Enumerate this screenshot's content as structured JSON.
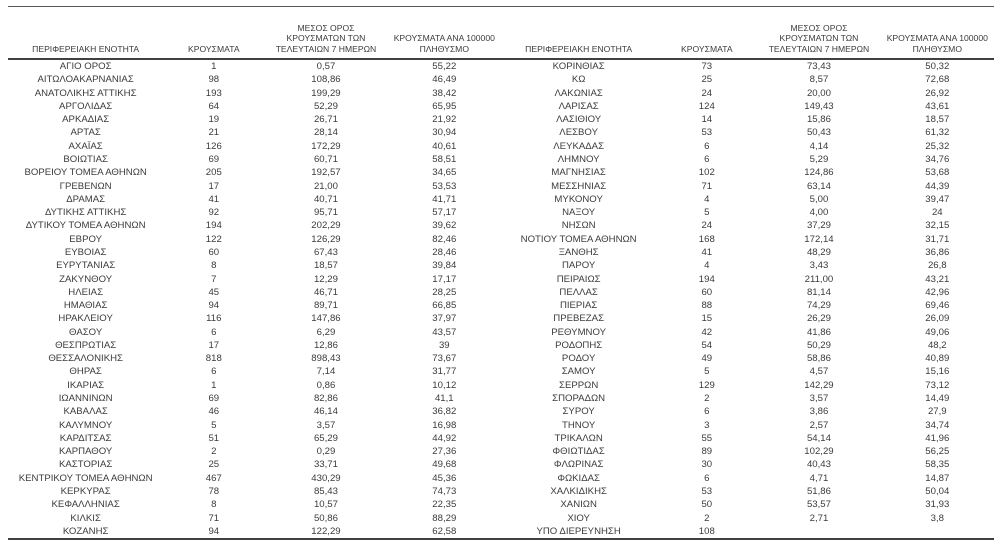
{
  "title": "Κρούσματα ανά περιφερειακή ενότητα",
  "colors": {
    "text": "#3b3b3b",
    "border": "#404040",
    "background": "#ffffff"
  },
  "table": {
    "headers": {
      "region": "ΠΕΡΙΦΕΡΕΙΑΚΗ ΕΝΟΤΗΤΑ",
      "cases": "ΚΡΟΥΣΜΑΤΑ",
      "avg7": "ΜΕΣΟΣ ΟΡΟΣ\nΚΡΟΥΣΜΑΤΩΝ ΤΩΝ\nΤΕΛΕΥΤΑΙΩΝ 7 ΗΜΕΡΩΝ",
      "per100k": "ΚΡΟΥΣΜΑΤΑ ΑΝΑ 100000\nΠΛΗΘΥΣΜΟ"
    },
    "halves": [
      {
        "rows": [
          [
            "ΑΓΙΟ ΟΡΟΣ",
            "1",
            "0,57",
            "55,22"
          ],
          [
            "ΑΙΤΩΛΟΑΚΑΡΝΑΝΙΑΣ",
            "98",
            "108,86",
            "46,49"
          ],
          [
            "ΑΝΑΤΟΛΙΚΗΣ ΑΤΤΙΚΗΣ",
            "193",
            "199,29",
            "38,42"
          ],
          [
            "ΑΡΓΟΛΙΔΑΣ",
            "64",
            "52,29",
            "65,95"
          ],
          [
            "ΑΡΚΑΔΙΑΣ",
            "19",
            "26,71",
            "21,92"
          ],
          [
            "ΑΡΤΑΣ",
            "21",
            "28,14",
            "30,94"
          ],
          [
            "ΑΧΑΪΑΣ",
            "126",
            "172,29",
            "40,61"
          ],
          [
            "ΒΟΙΩΤΙΑΣ",
            "69",
            "60,71",
            "58,51"
          ],
          [
            "ΒΟΡΕΙΟΥ ΤΟΜΕΑ ΑΘΗΝΩΝ",
            "205",
            "192,57",
            "34,65"
          ],
          [
            "ΓΡΕΒΕΝΩΝ",
            "17",
            "21,00",
            "53,53"
          ],
          [
            "ΔΡΑΜΑΣ",
            "41",
            "40,71",
            "41,71"
          ],
          [
            "ΔΥΤΙΚΗΣ ΑΤΤΙΚΗΣ",
            "92",
            "95,71",
            "57,17"
          ],
          [
            "ΔΥΤΙΚΟΥ ΤΟΜΕΑ ΑΘΗΝΩΝ",
            "194",
            "202,29",
            "39,62"
          ],
          [
            "ΕΒΡΟΥ",
            "122",
            "126,29",
            "82,46"
          ],
          [
            "ΕΥΒΟΙΑΣ",
            "60",
            "67,43",
            "28,46"
          ],
          [
            "ΕΥΡΥΤΑΝΙΑΣ",
            "8",
            "18,57",
            "39,84"
          ],
          [
            "ΖΑΚΥΝΘΟΥ",
            "7",
            "12,29",
            "17,17"
          ],
          [
            "ΗΛΕΙΑΣ",
            "45",
            "46,71",
            "28,25"
          ],
          [
            "ΗΜΑΘΙΑΣ",
            "94",
            "89,71",
            "66,85"
          ],
          [
            "ΗΡΑΚΛΕΙΟΥ",
            "116",
            "147,86",
            "37,97"
          ],
          [
            "ΘΑΣΟΥ",
            "6",
            "6,29",
            "43,57"
          ],
          [
            "ΘΕΣΠΡΩΤΙΑΣ",
            "17",
            "12,86",
            "39"
          ],
          [
            "ΘΕΣΣΑΛΟΝΙΚΗΣ",
            "818",
            "898,43",
            "73,67"
          ],
          [
            "ΘΗΡΑΣ",
            "6",
            "7,14",
            "31,77"
          ],
          [
            "ΙΚΑΡΙΑΣ",
            "1",
            "0,86",
            "10,12"
          ],
          [
            "ΙΩΑΝΝΙΝΩΝ",
            "69",
            "82,86",
            "41,1"
          ],
          [
            "ΚΑΒΑΛΑΣ",
            "46",
            "46,14",
            "36,82"
          ],
          [
            "ΚΑΛΥΜΝΟΥ",
            "5",
            "3,57",
            "16,98"
          ],
          [
            "ΚΑΡΔΙΤΣΑΣ",
            "51",
            "65,29",
            "44,92"
          ],
          [
            "ΚΑΡΠΑΘΟΥ",
            "2",
            "0,29",
            "27,36"
          ],
          [
            "ΚΑΣΤΟΡΙΑΣ",
            "25",
            "33,71",
            "49,68"
          ],
          [
            "ΚΕΝΤΡΙΚΟΥ ΤΟΜΕΑ ΑΘΗΝΩΝ",
            "467",
            "430,29",
            "45,36"
          ],
          [
            "ΚΕΡΚΥΡΑΣ",
            "78",
            "85,43",
            "74,73"
          ],
          [
            "ΚΕΦΑΛΛΗΝΙΑΣ",
            "8",
            "10,57",
            "22,35"
          ],
          [
            "ΚΙΛΚΙΣ",
            "71",
            "50,86",
            "88,29"
          ],
          [
            "ΚΟΖΑΝΗΣ",
            "94",
            "122,29",
            "62,58"
          ]
        ]
      },
      {
        "rows": [
          [
            "ΚΟΡΙΝΘΙΑΣ",
            "73",
            "73,43",
            "50,32"
          ],
          [
            "ΚΩ",
            "25",
            "8,57",
            "72,68"
          ],
          [
            "ΛΑΚΩΝΙΑΣ",
            "24",
            "20,00",
            "26,92"
          ],
          [
            "ΛΑΡΙΣΑΣ",
            "124",
            "149,43",
            "43,61"
          ],
          [
            "ΛΑΣΙΘΙΟΥ",
            "14",
            "15,86",
            "18,57"
          ],
          [
            "ΛΕΣΒΟΥ",
            "53",
            "50,43",
            "61,32"
          ],
          [
            "ΛΕΥΚΑΔΑΣ",
            "6",
            "4,14",
            "25,32"
          ],
          [
            "ΛΗΜΝΟΥ",
            "6",
            "5,29",
            "34,76"
          ],
          [
            "ΜΑΓΝΗΣΙΑΣ",
            "102",
            "124,86",
            "53,68"
          ],
          [
            "ΜΕΣΣΗΝΙΑΣ",
            "71",
            "63,14",
            "44,39"
          ],
          [
            "ΜΥΚΟΝΟΥ",
            "4",
            "5,00",
            "39,47"
          ],
          [
            "ΝΑΞΟΥ",
            "5",
            "4,00",
            "24"
          ],
          [
            "ΝΗΣΩΝ",
            "24",
            "37,29",
            "32,15"
          ],
          [
            "ΝΟΤΙΟΥ ΤΟΜΕΑ ΑΘΗΝΩΝ",
            "168",
            "172,14",
            "31,71"
          ],
          [
            "ΞΑΝΘΗΣ",
            "41",
            "48,29",
            "36,86"
          ],
          [
            "ΠΑΡΟΥ",
            "4",
            "3,43",
            "26,8"
          ],
          [
            "ΠΕΙΡΑΙΩΣ",
            "194",
            "211,00",
            "43,21"
          ],
          [
            "ΠΕΛΛΑΣ",
            "60",
            "81,14",
            "42,96"
          ],
          [
            "ΠΙΕΡΙΑΣ",
            "88",
            "74,29",
            "69,46"
          ],
          [
            "ΠΡΕΒΕΖΑΣ",
            "15",
            "26,29",
            "26,09"
          ],
          [
            "ΡΕΘΥΜΝΟΥ",
            "42",
            "41,86",
            "49,06"
          ],
          [
            "ΡΟΔΟΠΗΣ",
            "54",
            "50,29",
            "48,2"
          ],
          [
            "ΡΟΔΟΥ",
            "49",
            "58,86",
            "40,89"
          ],
          [
            "ΣΑΜΟΥ",
            "5",
            "4,57",
            "15,16"
          ],
          [
            "ΣΕΡΡΩΝ",
            "129",
            "142,29",
            "73,12"
          ],
          [
            "ΣΠΟΡΑΔΩΝ",
            "2",
            "3,57",
            "14,49"
          ],
          [
            "ΣΥΡΟΥ",
            "6",
            "3,86",
            "27,9"
          ],
          [
            "ΤΗΝΟΥ",
            "3",
            "2,57",
            "34,74"
          ],
          [
            "ΤΡΙΚΑΛΩΝ",
            "55",
            "54,14",
            "41,96"
          ],
          [
            "ΦΘΙΩΤΙΔΑΣ",
            "89",
            "102,29",
            "56,25"
          ],
          [
            "ΦΛΩΡΙΝΑΣ",
            "30",
            "40,43",
            "58,35"
          ],
          [
            "ΦΩΚΙΔΑΣ",
            "6",
            "4,71",
            "14,87"
          ],
          [
            "ΧΑΛΚΙΔΙΚΗΣ",
            "53",
            "51,86",
            "50,04"
          ],
          [
            "ΧΑΝΙΩΝ",
            "50",
            "53,57",
            "31,93"
          ],
          [
            "ΧΙΟΥ",
            "2",
            "2,71",
            "3,8"
          ],
          [
            "ΥΠΟ ΔΙΕΡΕΥΝΗΣΗ",
            "108",
            "",
            ""
          ]
        ]
      }
    ]
  }
}
